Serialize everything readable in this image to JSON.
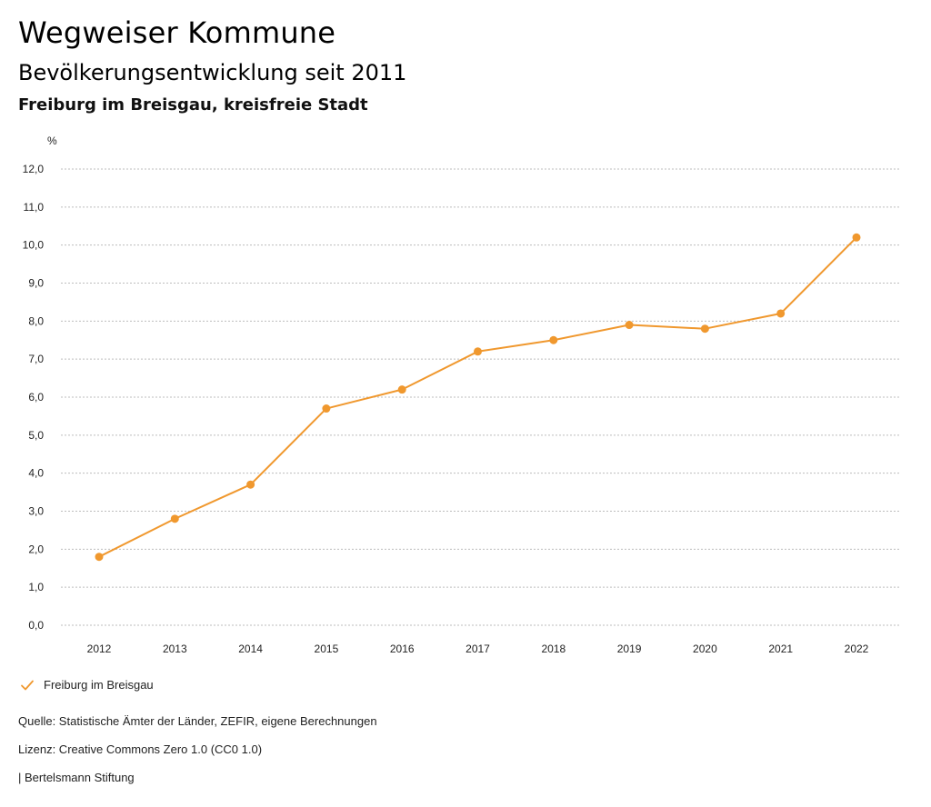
{
  "header": {
    "app_title": "Wegweiser Kommune",
    "chart_title": "Bevölkerungsentwicklung seit 2011",
    "chart_subtitle": "Freiburg im Breisgau, kreisfreie Stadt"
  },
  "legend": {
    "label": "Freiburg im Breisgau",
    "icon": "check-icon"
  },
  "footer": {
    "source": "Quelle: Statistische Ämter der Länder, ZEFIR, eigene Berechnungen",
    "license": "Lizenz: Creative Commons Zero 1.0 (CC0 1.0)",
    "publisher": "| Bertelsmann Stiftung"
  },
  "colors": {
    "series": "#F0982E",
    "grid": "#BDBDBD",
    "axis_text": "#222222"
  },
  "chart_data": {
    "type": "line",
    "title": "Bevölkerungsentwicklung seit 2011",
    "subtitle": "Freiburg im Breisgau, kreisfreie Stadt",
    "xlabel": "",
    "ylabel": "%",
    "ylim": [
      0,
      12
    ],
    "y_ticks": [
      0,
      1,
      2,
      3,
      4,
      5,
      6,
      7,
      8,
      9,
      10,
      11,
      12
    ],
    "y_tick_labels": [
      "0,0",
      "1,0",
      "2,0",
      "3,0",
      "4,0",
      "5,0",
      "6,0",
      "7,0",
      "8,0",
      "9,0",
      "10,0",
      "11,0",
      "12,0"
    ],
    "grid": true,
    "legend_position": "bottom-left",
    "categories": [
      "2012",
      "2013",
      "2014",
      "2015",
      "2016",
      "2017",
      "2018",
      "2019",
      "2020",
      "2021",
      "2022"
    ],
    "series": [
      {
        "name": "Freiburg im Breisgau",
        "values": [
          1.8,
          2.8,
          3.7,
          5.7,
          6.2,
          7.2,
          7.5,
          7.9,
          7.8,
          8.2,
          10.2
        ]
      }
    ]
  }
}
